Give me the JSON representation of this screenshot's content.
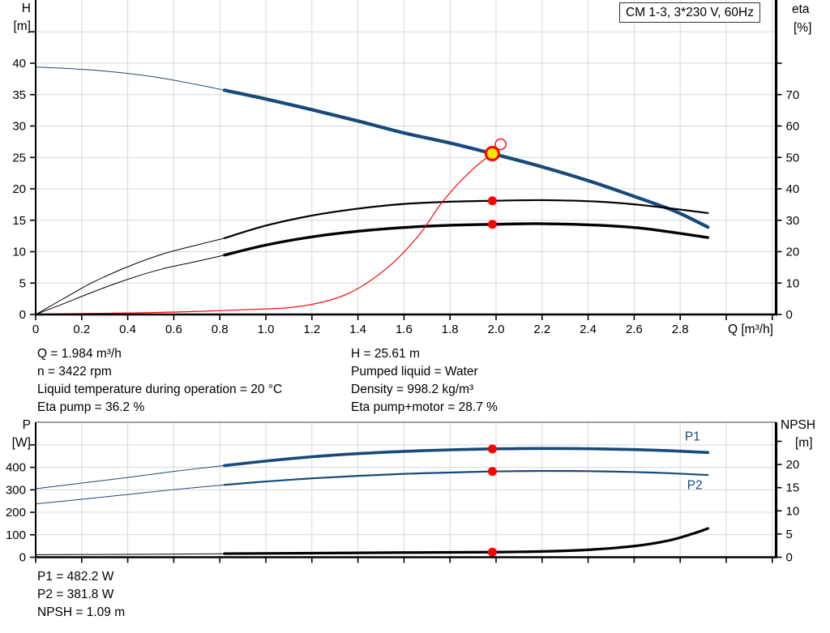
{
  "title_box": "CM 1-3, 3*230 V, 60Hz",
  "colors": {
    "blue": "#17497b",
    "black": "#000000",
    "red": "#ff0000",
    "yellow": "#ffe400",
    "grid": "#d7d7d7",
    "axis": "#000000",
    "frame_gray": "#666666",
    "white": "#ffffff"
  },
  "annotations": {
    "top_left": [
      "Q = 1.984 m³/h",
      "n = 3422 rpm",
      "Liquid temperature during operation = 20 °C",
      "Eta pump = 36.2 %"
    ],
    "top_right": [
      "H = 25.61 m",
      "Pumped liquid = Water",
      "Density = 998.2 kg/m³",
      "Eta pump+motor = 28.7 %"
    ],
    "bottom": [
      "P1 = 482.2 W",
      "P2 = 381.8 W",
      "NPSH = 1.09 m"
    ]
  },
  "chart_data": [
    {
      "type": "line",
      "title": "CM 1-3, 3*230 V, 60Hz",
      "x_axis": {
        "name": "Q",
        "unit": "[m³/h]",
        "label": "Q [m³/h]",
        "min": 0,
        "max": 3.21,
        "tick_step": 0.2,
        "tick_max": 3.2,
        "tick_labels": [
          "0",
          "0.2",
          "0.4",
          "0.6",
          "0.8",
          "1.0",
          "1.2",
          "1.4",
          "1.6",
          "1.8",
          "2.0",
          "2.2",
          "2.4",
          "2.6",
          "2.8"
        ]
      },
      "y_left": {
        "name": "H",
        "unit": "[m]",
        "min": 0,
        "max": 49,
        "tick_step": 5,
        "tick_max": 45,
        "tick_labels": [
          "0",
          "5",
          "10",
          "15",
          "20",
          "25",
          "30",
          "35",
          "40"
        ]
      },
      "y_right": {
        "name": "eta",
        "unit": "[%]",
        "min": 0,
        "max": 98,
        "tick_step": 10,
        "tick_max": 80,
        "tick_labels": [
          "0",
          "10",
          "20",
          "30",
          "40",
          "50",
          "60",
          "70"
        ]
      },
      "series": [
        {
          "name": "head-curve-extension",
          "axis": "left",
          "color": "blue",
          "width": 1,
          "points": [
            [
              0,
              39.4
            ],
            [
              0.25,
              38.9
            ],
            [
              0.5,
              37.9
            ],
            [
              0.7,
              36.6
            ],
            [
              0.82,
              35.7
            ]
          ]
        },
        {
          "name": "head-curve",
          "axis": "left",
          "color": "blue",
          "width": 4.2,
          "points": [
            [
              0.82,
              35.7
            ],
            [
              1.0,
              34.3
            ],
            [
              1.2,
              32.6
            ],
            [
              1.4,
              30.8
            ],
            [
              1.6,
              28.9
            ],
            [
              1.8,
              27.3
            ],
            [
              1.984,
              25.61
            ],
            [
              2.2,
              23.5
            ],
            [
              2.4,
              21.3
            ],
            [
              2.6,
              18.8
            ],
            [
              2.78,
              16.4
            ],
            [
              2.92,
              13.9
            ]
          ]
        },
        {
          "name": "eta-pump-extension",
          "axis": "right",
          "color": "black",
          "width": 1,
          "points": [
            [
              0,
              0
            ],
            [
              0.12,
              5
            ],
            [
              0.25,
              10.3
            ],
            [
              0.4,
              15.2
            ],
            [
              0.55,
              19.2
            ],
            [
              0.7,
              22.1
            ],
            [
              0.82,
              24.3
            ]
          ]
        },
        {
          "name": "eta-pump-curve",
          "axis": "right",
          "color": "black",
          "width": 2.2,
          "points": [
            [
              0.82,
              24.3
            ],
            [
              1.0,
              28.3
            ],
            [
              1.2,
              31.5
            ],
            [
              1.4,
              33.7
            ],
            [
              1.6,
              35.2
            ],
            [
              1.8,
              35.9
            ],
            [
              1.984,
              36.2
            ],
            [
              2.2,
              36.4
            ],
            [
              2.45,
              35.9
            ],
            [
              2.65,
              34.7
            ],
            [
              2.92,
              32.3
            ]
          ]
        },
        {
          "name": "eta-pump-motor-extension",
          "axis": "right",
          "color": "black",
          "width": 1,
          "points": [
            [
              0,
              0
            ],
            [
              0.12,
              3.4
            ],
            [
              0.25,
              7.2
            ],
            [
              0.4,
              11.2
            ],
            [
              0.55,
              14.5
            ],
            [
              0.7,
              16.9
            ],
            [
              0.82,
              18.9
            ]
          ]
        },
        {
          "name": "eta-pump-motor-curve",
          "axis": "right",
          "color": "black",
          "width": 3.4,
          "points": [
            [
              0.82,
              18.9
            ],
            [
              1.0,
              22.1
            ],
            [
              1.2,
              24.7
            ],
            [
              1.4,
              26.5
            ],
            [
              1.6,
              27.7
            ],
            [
              1.8,
              28.4
            ],
            [
              1.984,
              28.7
            ],
            [
              2.2,
              28.9
            ],
            [
              2.45,
              28.4
            ],
            [
              2.65,
              27.3
            ],
            [
              2.92,
              24.5
            ]
          ]
        },
        {
          "name": "system-curve",
          "axis": "left",
          "color": "red",
          "width": 1.2,
          "points": [
            [
              0,
              0.05
            ],
            [
              0.5,
              0.3
            ],
            [
              0.9,
              0.75
            ],
            [
              1.15,
              1.3
            ],
            [
              1.35,
              3.2
            ],
            [
              1.52,
              7.2
            ],
            [
              1.66,
              12.4
            ],
            [
              1.76,
              17.6
            ],
            [
              1.84,
              21.0
            ],
            [
              1.92,
              23.8
            ],
            [
              1.984,
              25.61
            ]
          ]
        }
      ],
      "markers": [
        {
          "name": "alt-duty-point",
          "axis": "left",
          "x": 2.02,
          "v": 27.1,
          "style": "open"
        },
        {
          "name": "eta-pump-point",
          "axis": "right",
          "x": 1.984,
          "v": 36.2,
          "style": "dot"
        },
        {
          "name": "eta-pump-motor-point",
          "axis": "right",
          "x": 1.984,
          "v": 28.7,
          "style": "dot"
        },
        {
          "name": "duty-point",
          "axis": "left",
          "x": 1.984,
          "v": 25.61,
          "style": "duty"
        }
      ],
      "inline_labels": [],
      "operating_point": {
        "Q": 1.984,
        "H": 25.61,
        "eta_pump": 36.2,
        "eta_pump_motor": 28.7
      }
    },
    {
      "type": "line",
      "title": "",
      "x_axis": {
        "name": "Q",
        "unit": "[m³/h]",
        "label": "",
        "min": 0,
        "max": 3.21,
        "tick_step": 0.2,
        "tick_max": 3.2,
        "tick_labels": []
      },
      "y_left": {
        "name": "P",
        "unit": "[W]",
        "min": 0,
        "max": 600,
        "tick_step": 100,
        "tick_max": 500,
        "tick_labels": [
          "0",
          "100",
          "200",
          "300",
          "400"
        ]
      },
      "y_right": {
        "name": "NPSH",
        "unit": "[m]",
        "min": 0,
        "max": 29,
        "tick_step": 5,
        "tick_max": 25,
        "tick_labels": [
          "0",
          "5",
          "10",
          "15",
          "20"
        ]
      },
      "series": [
        {
          "name": "p1-curve-extension",
          "axis": "left",
          "color": "blue",
          "width": 1,
          "points": [
            [
              0,
              305
            ],
            [
              0.2,
              330
            ],
            [
              0.4,
              355
            ],
            [
              0.6,
              382
            ],
            [
              0.82,
              408
            ]
          ]
        },
        {
          "name": "p1-curve",
          "axis": "left",
          "color": "blue",
          "width": 3.6,
          "points": [
            [
              0.82,
              408
            ],
            [
              1.0,
              428
            ],
            [
              1.2,
              447
            ],
            [
              1.4,
              461
            ],
            [
              1.6,
              471
            ],
            [
              1.8,
              478
            ],
            [
              1.984,
              482.2
            ],
            [
              2.2,
              484
            ],
            [
              2.4,
              483
            ],
            [
              2.6,
              479
            ],
            [
              2.75,
              474
            ],
            [
              2.92,
              466
            ]
          ]
        },
        {
          "name": "p2-curve-extension",
          "axis": "left",
          "color": "blue",
          "width": 1,
          "points": [
            [
              0,
              237
            ],
            [
              0.2,
              258
            ],
            [
              0.4,
              279
            ],
            [
              0.6,
              301
            ],
            [
              0.82,
              322
            ]
          ]
        },
        {
          "name": "p2-curve",
          "axis": "left",
          "color": "blue",
          "width": 2.2,
          "points": [
            [
              0.82,
              322
            ],
            [
              1.0,
              337
            ],
            [
              1.2,
              351
            ],
            [
              1.4,
              362
            ],
            [
              1.6,
              371
            ],
            [
              1.8,
              377
            ],
            [
              1.984,
              381.8
            ],
            [
              2.2,
              384
            ],
            [
              2.4,
              383
            ],
            [
              2.6,
              379
            ],
            [
              2.75,
              374
            ],
            [
              2.92,
              366
            ]
          ]
        },
        {
          "name": "npsh-curve-extension",
          "axis": "right",
          "color": "black",
          "width": 1,
          "points": [
            [
              0,
              0.55
            ],
            [
              0.4,
              0.62
            ],
            [
              0.82,
              0.75
            ]
          ]
        },
        {
          "name": "npsh-curve",
          "axis": "right",
          "color": "black",
          "width": 3.2,
          "points": [
            [
              0.82,
              0.78
            ],
            [
              1.2,
              0.88
            ],
            [
              1.6,
              1.0
            ],
            [
              1.984,
              1.09
            ],
            [
              2.2,
              1.25
            ],
            [
              2.4,
              1.6
            ],
            [
              2.6,
              2.4
            ],
            [
              2.75,
              3.6
            ],
            [
              2.85,
              5.0
            ],
            [
              2.92,
              6.2
            ]
          ]
        }
      ],
      "markers": [
        {
          "name": "p1-point",
          "axis": "left",
          "x": 1.984,
          "v": 482.2,
          "style": "dot"
        },
        {
          "name": "p2-point",
          "axis": "left",
          "x": 1.984,
          "v": 381.8,
          "style": "dot"
        },
        {
          "name": "npsh-point",
          "axis": "right",
          "x": 1.984,
          "v": 1.09,
          "style": "dot"
        }
      ],
      "inline_labels": [
        {
          "text": "P1",
          "x": 2.82,
          "v": 519,
          "axis": "left"
        },
        {
          "text": "P2",
          "x": 2.83,
          "v": 303,
          "axis": "left"
        }
      ],
      "operating_point": {
        "Q": 1.984,
        "P1": 482.2,
        "P2": 381.8,
        "NPSH": 1.09
      }
    }
  ]
}
